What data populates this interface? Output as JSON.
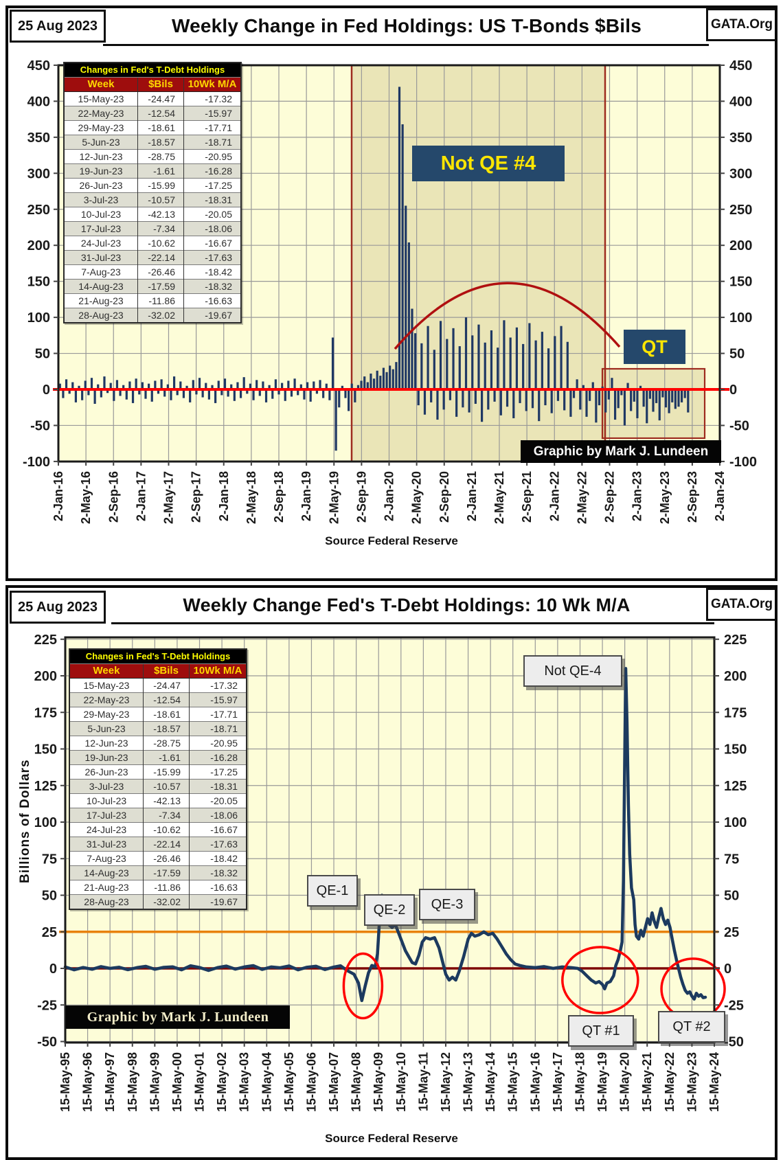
{
  "header_top": {
    "date": "25 Aug 2023",
    "title": "Weekly Change in Fed Holdings: US T-Bonds $Bils",
    "org": "GATA.Org"
  },
  "header_bottom": {
    "date": "25 Aug 2023",
    "title": "Weekly Change Fed's T-Debt Holdings: 10 Wk M/A",
    "org": "GATA.Org"
  },
  "source_top": "Source  Federal Reserve",
  "source_bottom": "Source Federal Reserve",
  "credit_top": "Graphic by Mark J. Lundeen",
  "credit_bottom": "Graphic by Mark J. Lundeen",
  "colors": {
    "plot_bg": "#fdfdd8",
    "region_fill": "rgba(170,145,70,0.22)",
    "region_border": "#9e2b1e",
    "grid": "#999999",
    "bar": "#1f3864",
    "line": "#1c3a5f",
    "zero_top": "#ff0000",
    "zero_bottom": "#7f0606",
    "orange_ref": "#e8820c",
    "arc": "#b01010",
    "circle": "#ff0000",
    "plot_border": "#1a1a1a"
  },
  "holdings_table": {
    "title": "Changes in Fed's T-Debt Holdings",
    "columns": [
      "Week",
      "$Bils",
      "10Wk M/A"
    ],
    "rows": [
      [
        "15-May-23",
        "-24.47",
        "-17.32"
      ],
      [
        "22-May-23",
        "-12.54",
        "-15.97"
      ],
      [
        "29-May-23",
        "-18.61",
        "-17.71"
      ],
      [
        "5-Jun-23",
        "-18.57",
        "-18.71"
      ],
      [
        "12-Jun-23",
        "-28.75",
        "-20.95"
      ],
      [
        "19-Jun-23",
        "-1.61",
        "-16.28"
      ],
      [
        "26-Jun-23",
        "-15.99",
        "-17.25"
      ],
      [
        "3-Jul-23",
        "-10.57",
        "-18.31"
      ],
      [
        "10-Jul-23",
        "-42.13",
        "-20.05"
      ],
      [
        "17-Jul-23",
        "-7.34",
        "-18.06"
      ],
      [
        "24-Jul-23",
        "-10.62",
        "-16.67"
      ],
      [
        "31-Jul-23",
        "-22.14",
        "-17.63"
      ],
      [
        "7-Aug-23",
        "-26.46",
        "-18.42"
      ],
      [
        "14-Aug-23",
        "-17.59",
        "-18.32"
      ],
      [
        "21-Aug-23",
        "-11.86",
        "-16.63"
      ],
      [
        "28-Aug-23",
        "-32.02",
        "-19.67"
      ]
    ]
  },
  "chart_data": [
    {
      "type": "bar",
      "title": "Weekly Change in Fed Holdings: US T-Bonds $Bils",
      "ylabel": "",
      "xlabel": "Source Federal Reserve",
      "ylim": [
        -100,
        450
      ],
      "y_ticks": [
        450,
        400,
        350,
        300,
        250,
        200,
        150,
        100,
        50,
        0,
        -50,
        -100
      ],
      "x_tick_labels": [
        "2-Jan-16",
        "2-May-16",
        "2-Sep-16",
        "2-Jan-17",
        "2-May-17",
        "2-Sep-17",
        "2-Jan-18",
        "2-May-18",
        "2-Sep-18",
        "2-Jan-19",
        "2-May-19",
        "2-Sep-19",
        "2-Jan-20",
        "2-May-20",
        "2-Sep-20",
        "2-Jan-21",
        "2-May-21",
        "2-Sep-21",
        "2-Jan-22",
        "2-May-22",
        "2-Sep-22",
        "2-Jan-23",
        "2-May-23",
        "2-Sep-23",
        "2-Jan-24"
      ],
      "grid": true,
      "weeks_per_bar": 2,
      "values": [
        8,
        -12,
        14,
        -6,
        10,
        -18,
        5,
        -15,
        12,
        -8,
        16,
        -20,
        7,
        -11,
        18,
        -5,
        9,
        -16,
        13,
        -9,
        6,
        -14,
        11,
        -19,
        15,
        -7,
        10,
        -13,
        8,
        -17,
        12,
        -6,
        14,
        -10,
        7,
        -15,
        18,
        -8,
        11,
        -12,
        5,
        -18,
        13,
        -7,
        16,
        -11,
        9,
        -14,
        6,
        -19,
        12,
        -8,
        15,
        -10,
        7,
        -16,
        10,
        -12,
        17,
        -6,
        8,
        -15,
        13,
        -9,
        11,
        -18,
        6,
        -13,
        14,
        -7,
        9,
        -16,
        12,
        -10,
        15,
        -8,
        7,
        -14,
        10,
        -17,
        11,
        -6,
        13,
        -12,
        8,
        -15,
        72,
        -85,
        -25,
        5,
        -12,
        -30,
        8,
        -18,
        6,
        12,
        18,
        10,
        22,
        15,
        26,
        19,
        30,
        24,
        33,
        28,
        38,
        420,
        368,
        255,
        204,
        112,
        78,
        -22,
        64,
        -35,
        88,
        -18,
        55,
        -42,
        95,
        -28,
        70,
        -15,
        85,
        -38,
        60,
        -25,
        100,
        -32,
        75,
        -20,
        90,
        -45,
        65,
        -28,
        82,
        -17,
        58,
        -36,
        96,
        -24,
        72,
        -40,
        86,
        -19,
        63,
        -30,
        92,
        -26,
        68,
        -44,
        80,
        -22,
        57,
        -33,
        74,
        -16,
        88,
        -29,
        66,
        -38,
        -12,
        14,
        -28,
        6,
        -38,
        -16,
        10,
        -46,
        -22,
        4,
        -32,
        -14,
        16,
        -42,
        -26,
        -8,
        -50,
        9,
        -30,
        -17,
        -40,
        5,
        -24,
        -47,
        -13,
        -31,
        -19,
        -43,
        -11,
        -25,
        -33,
        -18,
        -27,
        -24,
        -18,
        -12,
        -32
      ],
      "key_points": {
        "may_2019_up": 72,
        "may_2019_down": -85,
        "covid_peak": 420,
        "covid_second": 368,
        "last_week_value": -32.02
      },
      "regions": [
        {
          "name": "not_qe4_region",
          "x1_label": "2-Sep-19",
          "x2_label": "2-Jun-22"
        },
        {
          "name": "qt_region",
          "x1_label": "2-Sep-22",
          "x2_label": "2-Sep-23"
        }
      ],
      "trend_arc": {
        "peak_value": 145,
        "start_value": 60,
        "end_value": 65
      },
      "annotations": {
        "not_qe4": {
          "label": "Not QE #4"
        },
        "qt": {
          "label": "QT"
        }
      },
      "legend": null
    },
    {
      "type": "line",
      "title": "Weekly Change Fed's T-Debt Holdings: 10 Wk M/A",
      "ylabel": "Billions  of  Dollars",
      "xlabel": "Source Federal Reserve",
      "ylim": [
        -50,
        225
      ],
      "y_ticks": [
        225,
        200,
        175,
        150,
        125,
        100,
        75,
        50,
        25,
        0,
        -25,
        -50
      ],
      "x_tick_labels": [
        "15-May-95",
        "15-May-96",
        "15-May-97",
        "15-May-98",
        "15-May-99",
        "15-May-00",
        "15-May-01",
        "15-May-02",
        "15-May-03",
        "15-May-04",
        "15-May-05",
        "15-May-06",
        "15-May-07",
        "15-May-08",
        "15-May-09",
        "15-May-10",
        "15-May-11",
        "15-May-12",
        "15-May-13",
        "15-May-14",
        "15-May-15",
        "15-May-16",
        "15-May-17",
        "15-May-18",
        "15-May-19",
        "15-May-20",
        "15-May-21",
        "15-May-22",
        "15-May-23",
        "15-May-24"
      ],
      "grid": true,
      "ref_lines": [
        {
          "value": 25,
          "color_key": "orange_ref"
        },
        {
          "value": 0,
          "color_key": "zero_bottom"
        }
      ],
      "points": [
        [
          0,
          1
        ],
        [
          0.4,
          -1
        ],
        [
          0.8,
          0.6
        ],
        [
          1.2,
          -0.6
        ],
        [
          1.6,
          1.2
        ],
        [
          2,
          0
        ],
        [
          2.4,
          0.8
        ],
        [
          2.8,
          -0.9
        ],
        [
          3.2,
          0.5
        ],
        [
          3.6,
          1.4
        ],
        [
          4,
          -0.6
        ],
        [
          4.4,
          0.7
        ],
        [
          4.8,
          1.1
        ],
        [
          5.2,
          -1
        ],
        [
          5.6,
          1.8
        ],
        [
          6,
          0.6
        ],
        [
          6.4,
          -1.4
        ],
        [
          6.8,
          0.5
        ],
        [
          7.2,
          1.6
        ],
        [
          7.6,
          -0.5
        ],
        [
          8,
          1
        ],
        [
          8.4,
          1.9
        ],
        [
          8.8,
          -0.7
        ],
        [
          9.2,
          1
        ],
        [
          9.6,
          0.4
        ],
        [
          10,
          1.7
        ],
        [
          10.4,
          -1
        ],
        [
          10.8,
          0.8
        ],
        [
          11.2,
          1.5
        ],
        [
          11.6,
          -0.8
        ],
        [
          12,
          0.9
        ],
        [
          12.3,
          1.8
        ],
        [
          12.6,
          -1.5
        ],
        [
          12.9,
          -4
        ],
        [
          13.1,
          -10
        ],
        [
          13.25,
          -22
        ],
        [
          13.4,
          -12
        ],
        [
          13.55,
          -3
        ],
        [
          13.7,
          2
        ],
        [
          13.85,
          1
        ],
        [
          13.95,
          10
        ],
        [
          14.05,
          35
        ],
        [
          14.15,
          50
        ],
        [
          14.3,
          42
        ],
        [
          14.45,
          30
        ],
        [
          14.6,
          28
        ],
        [
          14.75,
          30
        ],
        [
          14.9,
          24
        ],
        [
          15.05,
          18
        ],
        [
          15.2,
          12
        ],
        [
          15.35,
          8
        ],
        [
          15.5,
          4
        ],
        [
          15.65,
          3
        ],
        [
          15.8,
          9
        ],
        [
          15.95,
          18
        ],
        [
          16.1,
          21
        ],
        [
          16.3,
          20
        ],
        [
          16.5,
          21
        ],
        [
          16.7,
          14
        ],
        [
          16.85,
          5
        ],
        [
          17,
          -4
        ],
        [
          17.15,
          -8
        ],
        [
          17.3,
          -6
        ],
        [
          17.45,
          -8
        ],
        [
          17.6,
          -2
        ],
        [
          17.8,
          8
        ],
        [
          18,
          20
        ],
        [
          18.15,
          24
        ],
        [
          18.3,
          22
        ],
        [
          18.5,
          23
        ],
        [
          18.7,
          25
        ],
        [
          18.9,
          23
        ],
        [
          19.1,
          24
        ],
        [
          19.3,
          20
        ],
        [
          19.5,
          15
        ],
        [
          19.7,
          10
        ],
        [
          19.9,
          6
        ],
        [
          20.1,
          3
        ],
        [
          20.3,
          2
        ],
        [
          20.6,
          1
        ],
        [
          21,
          0.5
        ],
        [
          21.4,
          1.2
        ],
        [
          21.8,
          0
        ],
        [
          22.2,
          1
        ],
        [
          22.6,
          0.5
        ],
        [
          22.9,
          0
        ],
        [
          23.1,
          -2
        ],
        [
          23.3,
          -5
        ],
        [
          23.5,
          -8
        ],
        [
          23.7,
          -10
        ],
        [
          23.85,
          -9
        ],
        [
          24,
          -11
        ],
        [
          24.1,
          -14
        ],
        [
          24.2,
          -10
        ],
        [
          24.35,
          -9
        ],
        [
          24.5,
          -5
        ],
        [
          24.6,
          2
        ],
        [
          24.7,
          6
        ],
        [
          24.8,
          12
        ],
        [
          24.88,
          18
        ],
        [
          24.94,
          60
        ],
        [
          25,
          150
        ],
        [
          25.04,
          205
        ],
        [
          25.1,
          168
        ],
        [
          25.16,
          112
        ],
        [
          25.22,
          78
        ],
        [
          25.3,
          55
        ],
        [
          25.4,
          47
        ],
        [
          25.46,
          30
        ],
        [
          25.52,
          22
        ],
        [
          25.62,
          20
        ],
        [
          25.72,
          26
        ],
        [
          25.82,
          22
        ],
        [
          25.92,
          28
        ],
        [
          26.02,
          34
        ],
        [
          26.12,
          30
        ],
        [
          26.22,
          38
        ],
        [
          26.32,
          32
        ],
        [
          26.42,
          28
        ],
        [
          26.52,
          35
        ],
        [
          26.62,
          41
        ],
        [
          26.72,
          34
        ],
        [
          26.82,
          30
        ],
        [
          26.92,
          33
        ],
        [
          27.02,
          28
        ],
        [
          27.12,
          20
        ],
        [
          27.22,
          12
        ],
        [
          27.32,
          5
        ],
        [
          27.4,
          0
        ],
        [
          27.5,
          -6
        ],
        [
          27.6,
          -11
        ],
        [
          27.7,
          -15
        ],
        [
          27.8,
          -17
        ],
        [
          27.9,
          -16
        ],
        [
          28,
          -19
        ],
        [
          28.1,
          -21
        ],
        [
          28.2,
          -17
        ],
        [
          28.3,
          -19
        ],
        [
          28.4,
          -18
        ],
        [
          28.5,
          -20
        ],
        [
          28.6,
          -19.7
        ]
      ],
      "key_points": {
        "qe1_peak": 50,
        "qe2_peak": 21,
        "qe3_peak": 25,
        "not_qe4_peak": 205,
        "dip_2008": -22,
        "qt1_dip": -14,
        "qt2_dip": -21
      },
      "annotations": {
        "qe1": {
          "label": "QE-1"
        },
        "qe2": {
          "label": "QE-2"
        },
        "qe3": {
          "label": "QE-3"
        },
        "not_qe4": {
          "label": "Not QE-4"
        },
        "qt1": {
          "label": "QT #1"
        },
        "qt2": {
          "label": "QT #2"
        }
      },
      "legend": null
    }
  ]
}
